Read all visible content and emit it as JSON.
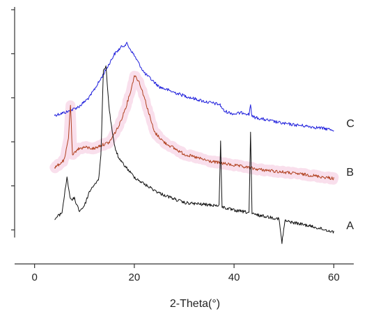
{
  "chart_data": {
    "type": "line",
    "xlabel": "2-Theta(°)",
    "ylabel": "",
    "xlim": [
      -4,
      64
    ],
    "x_ticks": [
      0,
      20,
      40,
      60
    ],
    "y_ticks_count": 6,
    "y_tick_labels_shown": false,
    "grid": false,
    "series": [
      {
        "name": "C",
        "color": "#1f1fdc",
        "band_color": "",
        "label_anchor_x": 60,
        "points": [
          [
            4,
            166
          ],
          [
            7,
            160
          ],
          [
            9,
            153
          ],
          [
            11,
            140
          ],
          [
            13,
            117
          ],
          [
            14.5,
            98
          ],
          [
            16,
            78
          ],
          [
            17.5,
            67
          ],
          [
            18.5,
            63
          ],
          [
            20,
            80
          ],
          [
            22,
            105
          ],
          [
            25,
            125
          ],
          [
            28,
            133
          ],
          [
            31,
            140
          ],
          [
            34,
            146
          ],
          [
            36.8,
            150
          ],
          [
            37.2,
            151
          ],
          [
            38,
            160
          ],
          [
            40,
            164
          ],
          [
            42,
            162
          ],
          [
            43,
            165
          ],
          [
            43.3,
            150
          ],
          [
            43.6,
            168
          ],
          [
            46,
            172
          ],
          [
            50,
            178
          ],
          [
            55,
            182
          ],
          [
            60,
            187
          ]
        ]
      },
      {
        "name": "B",
        "color": "#b0401e",
        "band_color": "#f2b8d4",
        "label_anchor_x": 60,
        "points": [
          [
            4,
            242
          ],
          [
            6,
            230
          ],
          [
            6.8,
            198
          ],
          [
            7.2,
            150
          ],
          [
            7.6,
            225
          ],
          [
            8.5,
            215
          ],
          [
            10,
            212
          ],
          [
            12,
            214
          ],
          [
            13,
            210
          ],
          [
            15,
            205
          ],
          [
            17,
            180
          ],
          [
            18.5,
            150
          ],
          [
            19.5,
            125
          ],
          [
            20,
            108
          ],
          [
            21,
            118
          ],
          [
            22,
            140
          ],
          [
            24,
            190
          ],
          [
            26,
            205
          ],
          [
            30,
            222
          ],
          [
            35,
            232
          ],
          [
            40,
            238
          ],
          [
            45,
            244
          ],
          [
            50,
            248
          ],
          [
            55,
            252
          ],
          [
            60,
            257
          ]
        ]
      },
      {
        "name": "A",
        "color": "#111111",
        "band_color": "",
        "label_anchor_x": 60,
        "points": [
          [
            4,
            316
          ],
          [
            5.5,
            306
          ],
          [
            6.5,
            255
          ],
          [
            7.2,
            288
          ],
          [
            8,
            286
          ],
          [
            9,
            304
          ],
          [
            10,
            296
          ],
          [
            11,
            276
          ],
          [
            12,
            265
          ],
          [
            12.8,
            260
          ],
          [
            13.3,
            225
          ],
          [
            13.8,
            100
          ],
          [
            14.3,
            95
          ],
          [
            15,
            160
          ],
          [
            16,
            210
          ],
          [
            17,
            230
          ],
          [
            18,
            238
          ],
          [
            20,
            255
          ],
          [
            22,
            265
          ],
          [
            25,
            278
          ],
          [
            30,
            292
          ],
          [
            35,
            295
          ],
          [
            37,
            296
          ],
          [
            37.3,
            205
          ],
          [
            37.6,
            298
          ],
          [
            40,
            303
          ],
          [
            43,
            306
          ],
          [
            43.3,
            190
          ],
          [
            43.6,
            308
          ],
          [
            45,
            310
          ],
          [
            49,
            315
          ],
          [
            49.6,
            350
          ],
          [
            50.2,
            318
          ],
          [
            55,
            325
          ],
          [
            60,
            334
          ]
        ]
      }
    ]
  }
}
